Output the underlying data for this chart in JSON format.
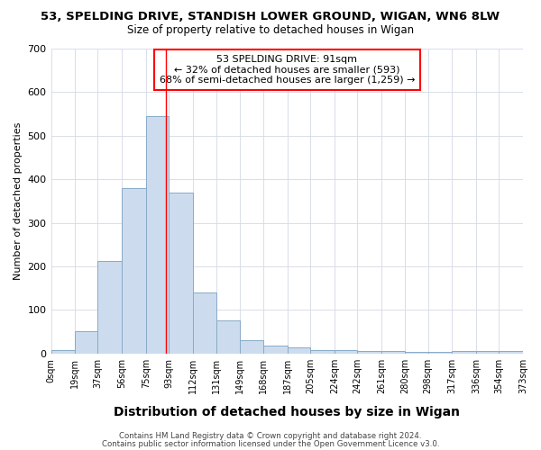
{
  "title": "53, SPELDING DRIVE, STANDISH LOWER GROUND, WIGAN, WN6 8LW",
  "subtitle": "Size of property relative to detached houses in Wigan",
  "xlabel": "Distribution of detached houses by size in Wigan",
  "ylabel": "Number of detached properties",
  "bin_edges": [
    0,
    19,
    37,
    56,
    75,
    93,
    112,
    131,
    149,
    168,
    187,
    205,
    224,
    242,
    261,
    280,
    298,
    317,
    336,
    354,
    373
  ],
  "bar_heights": [
    7,
    52,
    212,
    380,
    545,
    370,
    140,
    76,
    31,
    19,
    14,
    9,
    9,
    6,
    5,
    3,
    3,
    5,
    5,
    5
  ],
  "bar_color": "#ccdcee",
  "bar_edge_color": "#88aac8",
  "property_line_x": 91,
  "property_line_color": "red",
  "annotation_title": "53 SPELDING DRIVE: 91sqm",
  "annotation_line1": "← 32% of detached houses are smaller (593)",
  "annotation_line2": "68% of semi-detached houses are larger (1,259) →",
  "tick_labels": [
    "0sqm",
    "19sqm",
    "37sqm",
    "56sqm",
    "75sqm",
    "93sqm",
    "112sqm",
    "131sqm",
    "149sqm",
    "168sqm",
    "187sqm",
    "205sqm",
    "224sqm",
    "242sqm",
    "261sqm",
    "280sqm",
    "298sqm",
    "317sqm",
    "336sqm",
    "354sqm",
    "373sqm"
  ],
  "ylim": [
    0,
    700
  ],
  "yticks": [
    0,
    100,
    200,
    300,
    400,
    500,
    600,
    700
  ],
  "footnote1": "Contains HM Land Registry data © Crown copyright and database right 2024.",
  "footnote2": "Contains public sector information licensed under the Open Government Licence v3.0.",
  "background_color": "#ffffff",
  "grid_color": "#d8dde8"
}
